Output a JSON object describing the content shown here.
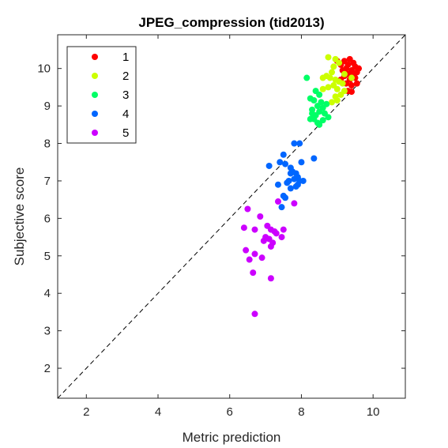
{
  "chart_data": {
    "type": "scatter",
    "title": "JPEG_compression (tid2013)",
    "xlabel": "Metric prediction",
    "ylabel": "Subjective score",
    "xlim": [
      1.2,
      10.9
    ],
    "ylim": [
      1.2,
      10.9
    ],
    "xticks": [
      2,
      4,
      6,
      8,
      10
    ],
    "yticks": [
      2,
      3,
      4,
      5,
      6,
      7,
      8,
      9,
      10
    ],
    "grid": false,
    "legend_position": "top-left",
    "reference_line": "diagonal y = x (dashed)",
    "series": [
      {
        "name": "1",
        "color": "#ff0000",
        "points": [
          [
            9.1,
            10.1
          ],
          [
            9.2,
            10.2
          ],
          [
            9.3,
            10.1
          ],
          [
            9.35,
            10.25
          ],
          [
            9.15,
            9.95
          ],
          [
            9.25,
            10.0
          ],
          [
            9.4,
            9.95
          ],
          [
            9.5,
            10.05
          ],
          [
            9.45,
            9.85
          ],
          [
            9.3,
            9.85
          ],
          [
            9.2,
            9.8
          ],
          [
            9.55,
            9.9
          ],
          [
            9.6,
            10.0
          ],
          [
            9.35,
            9.7
          ],
          [
            9.5,
            9.75
          ],
          [
            9.25,
            9.6
          ],
          [
            9.4,
            9.55
          ],
          [
            9.3,
            9.4
          ],
          [
            9.4,
            9.38
          ],
          [
            9.45,
            10.15
          ],
          [
            9.0,
            10.2
          ],
          [
            9.55,
            9.6
          ],
          [
            9.1,
            9.7
          ]
        ]
      },
      {
        "name": "2",
        "color": "#ccff00",
        "points": [
          [
            8.75,
            10.3
          ],
          [
            8.95,
            10.25
          ],
          [
            9.05,
            10.15
          ],
          [
            8.9,
            10.05
          ],
          [
            8.85,
            9.9
          ],
          [
            8.7,
            9.8
          ],
          [
            8.8,
            9.75
          ],
          [
            8.6,
            9.75
          ],
          [
            8.95,
            9.7
          ],
          [
            9.05,
            9.65
          ],
          [
            9.15,
            9.6
          ],
          [
            8.9,
            9.55
          ],
          [
            8.75,
            9.5
          ],
          [
            8.6,
            9.45
          ],
          [
            9.0,
            9.45
          ],
          [
            9.2,
            9.4
          ],
          [
            9.1,
            9.3
          ],
          [
            8.95,
            9.25
          ],
          [
            9.0,
            9.15
          ],
          [
            8.85,
            9.1
          ],
          [
            9.4,
            9.75
          ],
          [
            9.2,
            9.85
          ]
        ]
      },
      {
        "name": "3",
        "color": "#00ff66",
        "points": [
          [
            8.15,
            9.75
          ],
          [
            8.4,
            9.4
          ],
          [
            8.5,
            9.3
          ],
          [
            8.25,
            9.2
          ],
          [
            8.35,
            9.15
          ],
          [
            8.55,
            9.1
          ],
          [
            8.7,
            9.05
          ],
          [
            8.45,
            9.0
          ],
          [
            8.6,
            8.95
          ],
          [
            8.3,
            8.9
          ],
          [
            8.5,
            8.85
          ],
          [
            8.65,
            8.8
          ],
          [
            8.4,
            8.75
          ],
          [
            8.75,
            8.7
          ],
          [
            8.25,
            8.65
          ],
          [
            8.35,
            8.65
          ],
          [
            8.45,
            8.55
          ],
          [
            8.5,
            8.5
          ],
          [
            8.6,
            8.62
          ],
          [
            8.3,
            8.8
          ]
        ]
      },
      {
        "name": "4",
        "color": "#0066ff",
        "points": [
          [
            7.8,
            8.0
          ],
          [
            7.95,
            8.0
          ],
          [
            7.5,
            7.7
          ],
          [
            7.4,
            7.5
          ],
          [
            7.55,
            7.45
          ],
          [
            7.1,
            7.4
          ],
          [
            8.0,
            7.5
          ],
          [
            8.35,
            7.6
          ],
          [
            7.75,
            7.25
          ],
          [
            7.7,
            7.2
          ],
          [
            7.85,
            7.2
          ],
          [
            7.9,
            7.1
          ],
          [
            7.8,
            7.05
          ],
          [
            7.65,
            7.0
          ],
          [
            7.95,
            7.0
          ],
          [
            8.05,
            7.0
          ],
          [
            7.6,
            6.95
          ],
          [
            7.9,
            6.9
          ],
          [
            7.35,
            6.9
          ],
          [
            7.7,
            6.8
          ],
          [
            7.85,
            6.85
          ],
          [
            7.5,
            6.6
          ],
          [
            7.55,
            6.55
          ],
          [
            7.45,
            6.3
          ],
          [
            7.7,
            7.35
          ]
        ]
      },
      {
        "name": "5",
        "color": "#cc00ff",
        "points": [
          [
            6.5,
            6.25
          ],
          [
            7.35,
            6.45
          ],
          [
            7.8,
            6.4
          ],
          [
            6.85,
            6.05
          ],
          [
            6.4,
            5.75
          ],
          [
            6.7,
            5.7
          ],
          [
            7.05,
            5.8
          ],
          [
            7.15,
            5.7
          ],
          [
            7.5,
            5.7
          ],
          [
            7.25,
            5.65
          ],
          [
            7.3,
            5.6
          ],
          [
            7.0,
            5.5
          ],
          [
            7.1,
            5.45
          ],
          [
            7.45,
            5.5
          ],
          [
            6.95,
            5.4
          ],
          [
            7.2,
            5.35
          ],
          [
            7.15,
            5.25
          ],
          [
            6.45,
            5.15
          ],
          [
            6.7,
            5.05
          ],
          [
            6.9,
            4.95
          ],
          [
            6.55,
            4.9
          ],
          [
            6.65,
            4.55
          ],
          [
            7.15,
            4.4
          ],
          [
            6.7,
            3.45
          ]
        ]
      }
    ]
  }
}
